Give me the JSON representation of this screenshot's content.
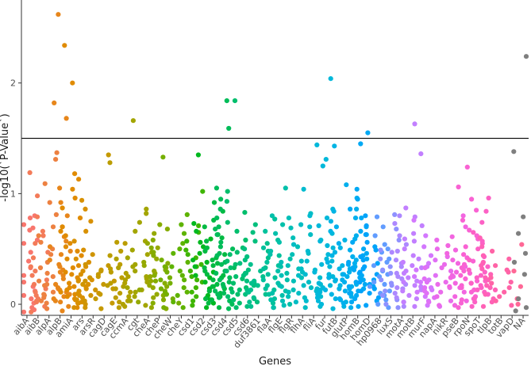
{
  "chart_data": {
    "type": "scatter",
    "xlabel": "Genes",
    "ylabel": "-log10(`P-Value`)",
    "yticks": [
      0,
      1,
      2
    ],
    "ylim": [
      -0.1,
      2.75
    ],
    "threshold": 1.5,
    "grid": false,
    "legend": "none",
    "categories": [
      "aibA",
      "aibB",
      "alpA",
      "alpB",
      "amiA",
      "ars",
      "arsR",
      "cagD",
      "cagE",
      "ccmA",
      "cgt",
      "cheA",
      "cheP",
      "cheW",
      "cheY",
      "csd1",
      "csd2",
      "csd3",
      "csd4",
      "csd5",
      "csd6",
      "duf3861",
      "flaA",
      "flgE",
      "flgR",
      "flhA",
      "fliA",
      "fur",
      "futB",
      "glutP",
      "homB",
      "homD",
      "hp0968",
      "luxS",
      "motA",
      "motB",
      "murF",
      "napA",
      "nikR",
      "pseB",
      "rpoN",
      "spoT",
      "tlpB",
      "totB",
      "vapD",
      "NA"
    ],
    "colors": [
      "#F8766D",
      "#F37B59",
      "#ED8141",
      "#E7861B",
      "#E08B00",
      "#D89000",
      "#CF9400",
      "#C59900",
      "#BB9D00",
      "#B0A100",
      "#A3A500",
      "#95A900",
      "#86AC00",
      "#75AF00",
      "#5EB300",
      "#3FB500",
      "#00B81F",
      "#00BA42",
      "#00BC59",
      "#00BE6C",
      "#00BF7D",
      "#00C08D",
      "#00C19C",
      "#00C0AA",
      "#00BFB7",
      "#00BDC4",
      "#00BBCF",
      "#00B8DA",
      "#00B4E4",
      "#00AFED",
      "#00A9F4",
      "#00A3FA",
      "#619CFF",
      "#8F91FF",
      "#AD88FF",
      "#C27FFF",
      "#D378FE",
      "#E070F5",
      "#EA6AEB",
      "#F265E0",
      "#F962D3",
      "#FC61C5",
      "#FF61B6",
      "#FF63A6",
      "#FF6896",
      "#7F7F7F"
    ],
    "series": [
      {
        "category": "aibA",
        "y": [
          0.78,
          0.72,
          0.67,
          0.58,
          0.47,
          0.33,
          0.2,
          0.12,
          0.05,
          0.01,
          -0.03,
          -0.07,
          0.16,
          0.26,
          0.39,
          0.08,
          0.55,
          0.69,
          0.8,
          -0.05
        ]
      },
      {
        "category": "aibB",
        "y": [
          1.19,
          0.98,
          0.66,
          0.55,
          0.42,
          0.3,
          0.22,
          0.14,
          0.08,
          0.02,
          -0.02,
          -0.07,
          0.34,
          0.18,
          0.11,
          0.05,
          0.47,
          0.79,
          0.62,
          0.26,
          0.03
        ]
      },
      {
        "category": "alpA",
        "y": [
          1.37,
          1.31,
          1.09,
          0.92,
          0.81,
          0.7,
          0.56,
          0.45,
          0.33,
          0.25,
          0.18,
          0.11,
          0.06,
          0.01,
          -0.04,
          0.28,
          0.14,
          0.38,
          0.21,
          0.09,
          0.03,
          0.5,
          0.62,
          0.17,
          0.08
        ]
      },
      {
        "category": "alpB",
        "y": [
          2.62,
          1.82,
          1.68,
          1.05,
          0.92,
          0.8,
          0.7,
          0.61,
          0.52,
          0.45,
          0.36,
          0.29,
          0.23,
          0.18,
          0.13,
          0.09,
          0.05,
          0.02,
          -0.02,
          -0.06,
          0.4,
          0.31,
          0.26,
          0.15,
          0.11,
          0.07,
          0.03,
          0.57,
          0.48,
          0.34
        ]
      },
      {
        "category": "amiA",
        "y": [
          2.34,
          2.0,
          1.18,
          1.13,
          1.04,
          0.96,
          0.87,
          0.78,
          0.7,
          0.62,
          0.55,
          0.48,
          0.41,
          0.35,
          0.29,
          0.24,
          0.19,
          0.15,
          0.11,
          0.07,
          0.04,
          0.01,
          -0.03,
          0.44,
          0.33,
          0.22,
          0.13,
          0.66,
          0.52,
          0.27,
          0.16,
          0.09,
          0.05
        ]
      },
      {
        "category": "ars",
        "y": [
          0.94,
          0.86,
          0.75,
          0.66,
          0.57,
          0.49,
          0.41,
          0.34,
          0.27,
          0.21,
          0.16,
          0.12,
          0.08,
          0.04,
          0.01,
          -0.03,
          0.3,
          0.22,
          0.14,
          0.06,
          0.38,
          0.18,
          0.1,
          0.02
        ]
      },
      {
        "category": "arsR",
        "y": [
          0.45,
          0.36,
          0.31,
          0.24,
          0.18,
          0.13,
          0.08,
          0.03,
          0.0,
          -0.03,
          0.21,
          0.1
        ]
      },
      {
        "category": "cagD",
        "y": [
          1.35,
          0.35,
          0.3,
          0.25,
          0.18,
          0.14,
          0.09,
          0.05,
          0.01,
          -0.04,
          0.21,
          0.27
        ]
      },
      {
        "category": "cagE",
        "y": [
          1.28,
          0.56,
          0.55,
          0.44,
          0.36,
          0.29,
          0.24,
          0.19,
          0.14,
          0.1,
          0.06,
          0.02,
          -0.03,
          0.32,
          0.17,
          0.48
        ]
      },
      {
        "category": "ccmA",
        "y": [
          0.41,
          0.33,
          0.28,
          0.22,
          0.16,
          0.11,
          0.07,
          0.03,
          0.0,
          -0.02,
          0.19,
          0.25
        ]
      },
      {
        "category": "cgt",
        "y": [
          1.66,
          0.86,
          0.82,
          0.74,
          0.66,
          0.57,
          0.49,
          0.42,
          0.36,
          0.3,
          0.25,
          0.2,
          0.15,
          0.11,
          0.07,
          0.03,
          -0.01,
          0.34,
          0.23,
          0.13,
          0.45
        ]
      },
      {
        "category": "cheA",
        "y": [
          0.64,
          0.55,
          0.47,
          0.41,
          0.35,
          0.3,
          0.25,
          0.21,
          0.17,
          0.13,
          0.09,
          0.06,
          0.02,
          -0.03,
          0.38,
          0.28,
          0.15,
          0.51
        ]
      },
      {
        "category": "cheP",
        "y": [
          0.72,
          0.68,
          0.58,
          0.51,
          0.44,
          0.37,
          0.31,
          0.26,
          0.21,
          0.16,
          0.12,
          0.08,
          0.04,
          0.01,
          -0.04,
          0.33,
          0.19,
          0.47
        ]
      },
      {
        "category": "cheW",
        "y": [
          1.33,
          0.4,
          0.34,
          0.29,
          0.24,
          0.19,
          0.14,
          0.09,
          0.05,
          0.01,
          -0.03,
          0.22,
          0.11
        ]
      },
      {
        "category": "cheY",
        "y": [
          0.81,
          0.72,
          0.64,
          0.55,
          0.46,
          0.38,
          0.3,
          0.22,
          0.15,
          0.08,
          0.02,
          -0.03,
          0.26,
          0.11,
          0.5,
          0.34
        ]
      },
      {
        "category": "csd1",
        "y": [
          1.02,
          0.71,
          0.65,
          0.57,
          0.49,
          0.42,
          0.36,
          0.3,
          0.25,
          0.2,
          0.15,
          0.11,
          0.07,
          0.03,
          -0.01,
          0.34,
          0.22,
          0.45
        ]
      },
      {
        "category": "csd2",
        "y": [
          1.35,
          0.73,
          0.66,
          0.59,
          0.52,
          0.46,
          0.4,
          0.34,
          0.29,
          0.24,
          0.2,
          0.16,
          0.12,
          0.08,
          0.04,
          0.01,
          -0.03,
          0.38,
          0.26,
          0.14,
          0.56,
          0.06
        ]
      },
      {
        "category": "csd3",
        "y": [
          0.92,
          0.84,
          0.76,
          0.7,
          0.63,
          0.57,
          0.51,
          0.45,
          0.4,
          0.35,
          0.3,
          0.26,
          0.22,
          0.18,
          0.14,
          0.1,
          0.07,
          0.04,
          0.01,
          -0.03,
          0.48,
          0.33,
          0.24,
          0.16,
          0.6,
          0.37,
          0.12,
          0.27,
          0.05,
          0.42
        ]
      },
      {
        "category": "csd4",
        "y": [
          1.84,
          1.59,
          1.05,
          0.95,
          0.86,
          0.78,
          0.7,
          0.63,
          0.56,
          0.5,
          0.44,
          0.38,
          0.33,
          0.28,
          0.24,
          0.2,
          0.16,
          0.12,
          0.09,
          0.06,
          0.03,
          0.0,
          -0.04,
          0.46,
          0.3,
          0.22,
          0.14,
          0.68,
          0.52,
          0.36,
          0.18,
          0.1
        ]
      },
      {
        "category": "csd5",
        "y": [
          1.84,
          1.02,
          0.93,
          0.83,
          0.74,
          0.66,
          0.58,
          0.51,
          0.45,
          0.39,
          0.33,
          0.28,
          0.23,
          0.19,
          0.15,
          0.11,
          0.07,
          0.04,
          0.01,
          -0.03,
          0.36,
          0.25,
          0.13,
          0.47,
          0.3,
          0.09
        ]
      },
      {
        "category": "csd6",
        "y": [
          0.72,
          0.65,
          0.57,
          0.5,
          0.43,
          0.37,
          0.31,
          0.26,
          0.21,
          0.17,
          0.13,
          0.09,
          0.05,
          0.02,
          -0.02,
          0.4,
          0.28,
          0.19,
          0.11
        ]
      },
      {
        "category": "duf3861",
        "y": [
          0.55,
          0.48,
          0.42,
          0.36,
          0.3,
          0.25,
          0.21,
          0.17,
          0.13,
          0.09,
          0.06,
          0.02,
          -0.02,
          0.33,
          0.19,
          0.11
        ]
      },
      {
        "category": "flaA",
        "y": [
          0.77,
          0.66,
          0.58,
          0.51,
          0.44,
          0.38,
          0.32,
          0.27,
          0.22,
          0.17,
          0.13,
          0.09,
          0.05,
          0.01,
          -0.03,
          0.35,
          0.24,
          0.14
        ]
      },
      {
        "category": "flgE",
        "y": [
          1.05,
          0.8,
          0.72,
          0.64,
          0.56,
          0.48,
          0.41,
          0.34,
          0.28,
          0.22,
          0.17,
          0.12,
          0.08,
          0.04,
          0.0,
          -0.03,
          0.45,
          0.3,
          0.19,
          0.1
        ]
      },
      {
        "category": "flgR",
        "y": [
          0.78,
          0.69,
          0.6,
          0.52,
          0.45,
          0.38,
          0.32,
          0.26,
          0.21,
          0.16,
          0.11,
          0.07,
          0.03,
          -0.01,
          0.35,
          0.24,
          0.13
        ]
      },
      {
        "category": "flhA",
        "y": [
          0.82,
          0.72,
          0.63,
          0.54,
          0.46,
          0.39,
          0.32,
          0.26,
          0.2,
          0.15,
          0.1,
          0.06,
          0.02,
          -0.03,
          0.29,
          0.17
        ]
      },
      {
        "category": "fliA",
        "y": [
          1.04,
          0.8,
          0.7,
          0.58,
          0.48,
          0.39,
          0.31,
          0.24,
          0.18,
          0.12,
          0.07,
          0.03,
          -0.02,
          0.27,
          0.14
        ]
      },
      {
        "category": "fur",
        "y": [
          2.04,
          1.44,
          1.31,
          1.25,
          0.86,
          0.78,
          0.71,
          0.64,
          0.57,
          0.51,
          0.45,
          0.39,
          0.34,
          0.29,
          0.25,
          0.21,
          0.17,
          0.13,
          0.09,
          0.06,
          0.03,
          0.0,
          -0.04,
          0.36,
          0.27,
          0.19,
          0.11,
          0.53,
          0.41,
          0.15
        ]
      },
      {
        "category": "futB",
        "y": [
          1.43,
          0.84,
          0.75,
          0.66,
          0.58,
          0.51,
          0.44,
          0.38,
          0.32,
          0.27,
          0.22,
          0.17,
          0.13,
          0.09,
          0.05,
          0.02,
          -0.02,
          0.35,
          0.24,
          0.14,
          0.47
        ]
      },
      {
        "category": "glutP",
        "y": [
          1.08,
          0.96,
          0.86,
          0.78,
          0.7,
          0.62,
          0.55,
          0.49,
          0.43,
          0.37,
          0.32,
          0.27,
          0.22,
          0.18,
          0.14,
          0.1,
          0.07,
          0.04,
          0.01,
          -0.03,
          0.4,
          0.29,
          0.2,
          0.12,
          0.59,
          0.34,
          0.16,
          0.25,
          0.05
        ]
      },
      {
        "category": "homB",
        "y": [
          1.55,
          1.45,
          1.04,
          0.95,
          0.86,
          0.78,
          0.7,
          0.63,
          0.56,
          0.5,
          0.44,
          0.38,
          0.33,
          0.28,
          0.24,
          0.2,
          0.16,
          0.12,
          0.08,
          0.05,
          0.02,
          -0.02,
          0.46,
          0.36,
          0.26,
          0.18,
          0.1,
          0.66,
          0.41,
          0.22,
          0.14,
          0.31
        ]
      },
      {
        "category": "homD",
        "y": [
          0.8,
          0.71,
          0.63,
          0.56,
          0.49,
          0.43,
          0.37,
          0.32,
          0.27,
          0.22,
          0.18,
          0.14,
          0.1,
          0.06,
          0.03,
          -0.01,
          0.4,
          0.29,
          0.2,
          0.12,
          0.52,
          0.34,
          0.16
        ]
      },
      {
        "category": "hp0968",
        "y": [
          0.79,
          0.7,
          0.62,
          0.54,
          0.47,
          0.41,
          0.35,
          0.3,
          0.25,
          0.2,
          0.16,
          0.12,
          0.08,
          0.04,
          0.0,
          -0.03,
          0.38,
          0.27,
          0.18,
          0.1,
          0.5
        ]
      },
      {
        "category": "luxS",
        "y": [
          0.81,
          0.68,
          0.58,
          0.49,
          0.41,
          0.34,
          0.28,
          0.22,
          0.17,
          0.12,
          0.08,
          0.04,
          0.0,
          -0.03,
          0.31,
          0.19
        ]
      },
      {
        "category": "motA",
        "y": [
          0.8,
          0.73,
          0.62,
          0.54,
          0.47,
          0.4,
          0.34,
          0.28,
          0.23,
          0.18,
          0.14,
          0.1,
          0.06,
          0.02,
          -0.02,
          0.37,
          0.25,
          0.15,
          0.48
        ]
      },
      {
        "category": "motB",
        "y": [
          1.63,
          1.36,
          0.87,
          0.79,
          0.71,
          0.64,
          0.57,
          0.5,
          0.44,
          0.38,
          0.33,
          0.28,
          0.24,
          0.2,
          0.16,
          0.12,
          0.08,
          0.05,
          0.02,
          -0.02,
          0.41,
          0.3,
          0.21,
          0.13,
          0.59,
          0.35,
          0.17
        ]
      },
      {
        "category": "murF",
        "y": [
          0.76,
          0.62,
          0.52,
          0.44,
          0.37,
          0.31,
          0.25,
          0.2,
          0.15,
          0.11,
          0.07,
          0.03,
          -0.01,
          0.34,
          0.22,
          0.13
        ]
      },
      {
        "category": "napA",
        "y": [
          0.4,
          0.33,
          0.26,
          0.2,
          0.15,
          0.1,
          0.06,
          0.02,
          -0.02,
          0.23,
          0.12
        ]
      },
      {
        "category": "nikR",
        "y": [
          0.58,
          0.5,
          0.43,
          0.36,
          0.3,
          0.25,
          0.2,
          0.15,
          0.11,
          0.07,
          0.03,
          -0.01,
          0.33,
          0.18
        ]
      },
      {
        "category": "pseB",
        "y": [
          0.8,
          0.7,
          0.61,
          0.53,
          0.46,
          0.4,
          0.34,
          0.29,
          0.24,
          0.19,
          0.15,
          0.11,
          0.07,
          0.03,
          -0.01,
          0.37,
          0.26,
          0.16,
          0.49
        ]
      },
      {
        "category": "rpoN",
        "y": [
          1.24,
          1.06,
          0.95,
          0.85,
          0.76,
          0.67,
          0.59,
          0.52,
          0.45,
          0.39,
          0.33,
          0.28,
          0.23,
          0.19,
          0.15,
          0.11,
          0.07,
          0.04,
          0.01,
          -0.03,
          0.42,
          0.3,
          0.21,
          0.13,
          0.62,
          0.36,
          0.17,
          0.26,
          0.05
        ]
      },
      {
        "category": "spoT",
        "y": [
          0.96,
          0.84,
          0.74,
          0.65,
          0.57,
          0.5,
          0.43,
          0.37,
          0.31,
          0.26,
          0.21,
          0.17,
          0.13,
          0.09,
          0.05,
          0.02,
          -0.02,
          0.4,
          0.29,
          0.19,
          0.11,
          0.55,
          0.34,
          0.15,
          0.24
        ]
      },
      {
        "category": "tlpB",
        "y": [
          0.6,
          0.52,
          0.44,
          0.38,
          0.32,
          0.27,
          0.22,
          0.17,
          0.13,
          0.09,
          0.05,
          0.02,
          -0.02,
          0.35,
          0.24,
          0.15
        ]
      },
      {
        "category": "totB",
        "y": [
          0.48,
          0.41,
          0.35,
          0.29,
          0.24,
          0.19,
          0.15,
          0.11,
          0.07,
          0.03,
          -0.01,
          0.31,
          0.2
        ]
      },
      {
        "category": "vapD",
        "y": [
          0.54,
          0.3,
          0.16,
          0.05,
          0.0
        ]
      },
      {
        "category": "NA",
        "y": [
          2.24,
          1.38,
          0.79,
          0.64,
          0.46,
          0.38,
          0.27,
          0.05,
          -0.03,
          -0.06
        ]
      }
    ]
  }
}
